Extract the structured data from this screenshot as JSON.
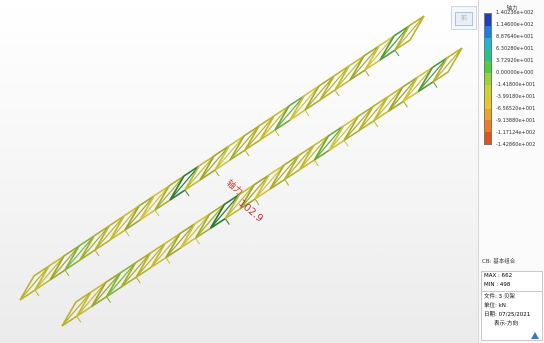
{
  "legend": {
    "title": "轴力",
    "values": [
      "1.40236e+002",
      "1.14600e+002",
      "8.87640e+001",
      "6.30280e+001",
      "3.72920e+001",
      "0.00000e+000",
      "-1.41800e+001",
      "-3.99180e+001",
      "-6.56520e+001",
      "-9.13880e+001",
      "-1.17124e+002",
      "-1.42860e+002"
    ],
    "colors": [
      "#1f3fc2",
      "#1a7fe0",
      "#1cb7d6",
      "#22c48a",
      "#4fcf3a",
      "#9ad23a",
      "#c9d42e",
      "#e6c82a",
      "#f1a126",
      "#ee7a22",
      "#e0521c"
    ]
  },
  "info": {
    "cb": "CB: 基本组合",
    "max": "MAX : 662",
    "min": "MIN : 498",
    "file": "文件: 3 贝架",
    "unit": "单位: kN",
    "date": "日期: 07/25/2021",
    "view": "表示-方向"
  },
  "annotations": {
    "label_upper": "轴力",
    "label_value": "102.9"
  },
  "viewcube": {
    "face": "前"
  }
}
